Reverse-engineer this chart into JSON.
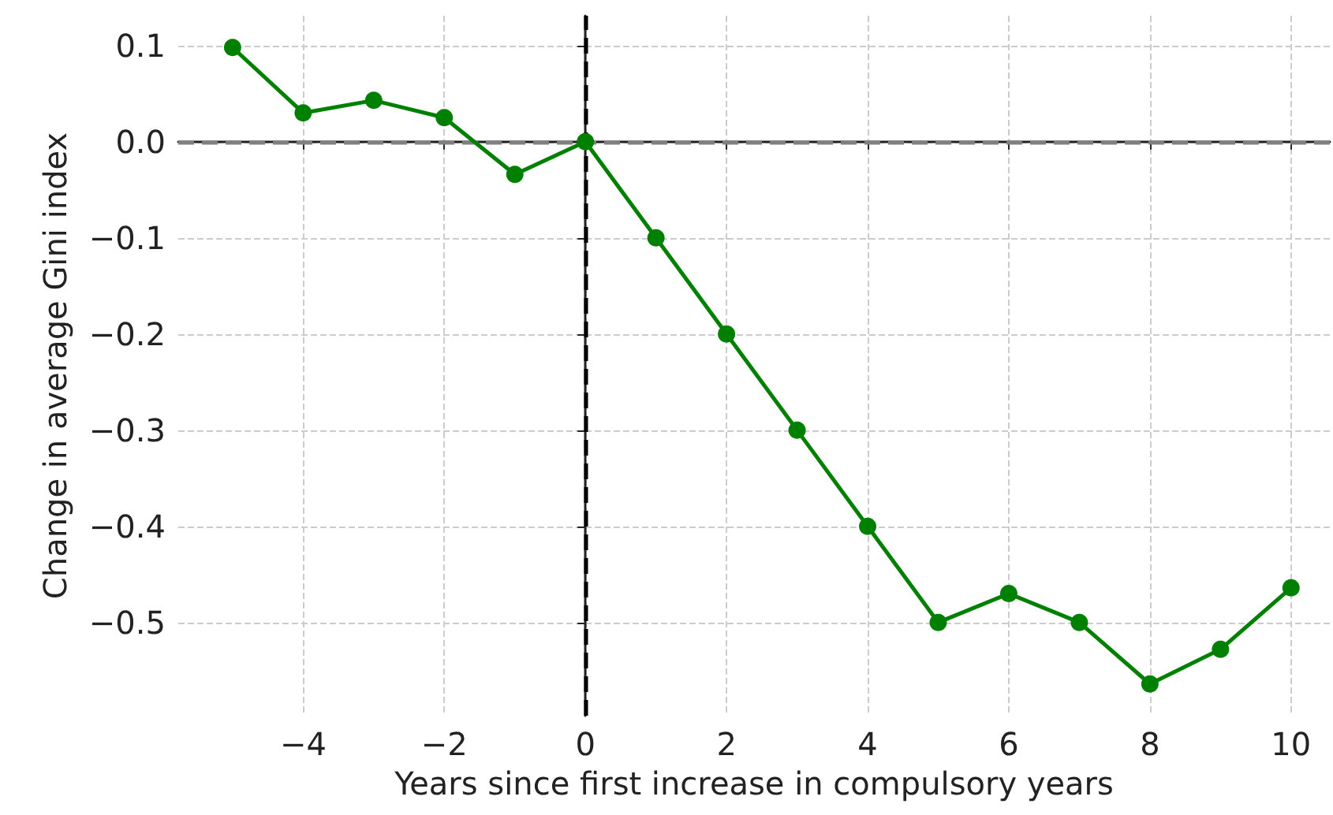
{
  "chart_data": {
    "type": "line",
    "xlabel": "Years since first increase in compulsory years",
    "ylabel": "Change in average Gini index",
    "x": [
      -5,
      -4,
      -3,
      -2,
      -1,
      0,
      1,
      2,
      3,
      4,
      5,
      6,
      7,
      8,
      9,
      10
    ],
    "series": [
      {
        "color": "#008000",
        "values": [
          0.098,
          0.03,
          0.043,
          0.025,
          -0.034,
          0,
          -0.1,
          -0.2,
          -0.3,
          -0.4,
          -0.5,
          -0.47,
          -0.5,
          -0.564,
          -0.528,
          -0.464
        ]
      }
    ],
    "xlim": [
      -5.77,
      10.55
    ],
    "xticks": [
      {
        "value": -4,
        "label": "−4"
      },
      {
        "value": -2,
        "label": "−2"
      },
      0,
      2,
      4,
      6,
      8,
      10
    ],
    "ylim": [
      -0.597,
      0.131
    ],
    "yticks": [
      {
        "value": -0.5,
        "label": "−0.5"
      },
      {
        "value": -0.4,
        "label": "−0.4"
      },
      {
        "value": -0.3,
        "label": "−0.3"
      },
      {
        "value": -0.2,
        "label": "−0.2"
      },
      {
        "value": -0.1,
        "label": "−0.1"
      },
      {
        "value": 0,
        "label": "0.0"
      },
      0.1
    ],
    "ref_lines": [
      {
        "axis": "y",
        "value": 0,
        "color": "#808080",
        "line_style": "dashed"
      },
      {
        "axis": "x",
        "value": 0,
        "color": "#000000",
        "line_style": "dashed"
      }
    ],
    "grid": true,
    "marker": "circle",
    "line_style": "solid"
  }
}
